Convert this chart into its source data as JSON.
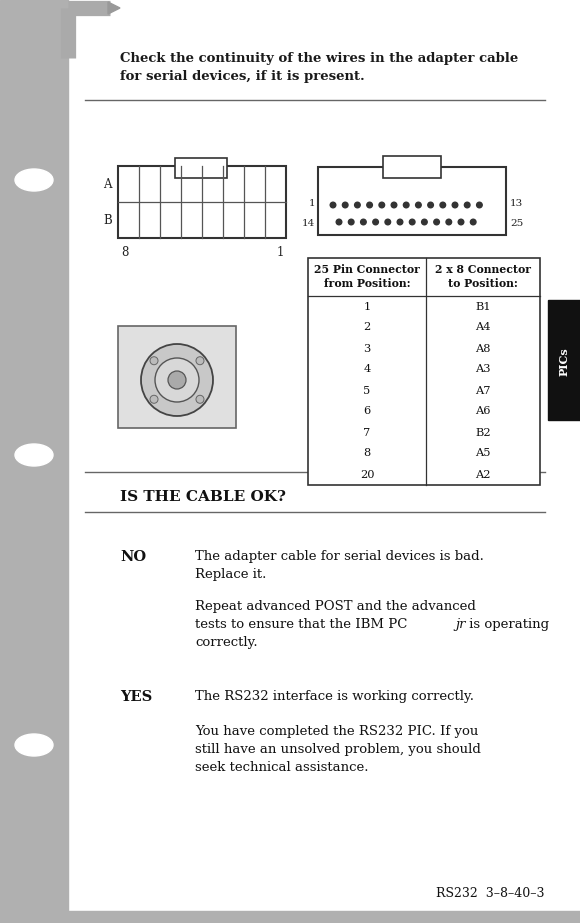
{
  "page_bg": "#ffffff",
  "sidebar_color": "#b0b0b0",
  "intro_text_line1": "Check the continuity of the wires in the adapter cable",
  "intro_text_line2": "for serial devices, if it is present.",
  "table_headers": [
    "25 Pin Connector\nfrom Position:",
    "2 x 8 Connector\nto Position:"
  ],
  "table_rows": [
    [
      "1",
      "B1"
    ],
    [
      "2",
      "A4"
    ],
    [
      "3",
      "A8"
    ],
    [
      "4",
      "A3"
    ],
    [
      "5",
      "A7"
    ],
    [
      "6",
      "A6"
    ],
    [
      "7",
      "B2"
    ],
    [
      "8",
      "A5"
    ],
    [
      "20",
      "A2"
    ]
  ],
  "section_header": "IS THE CABLE OK?",
  "no_label": "NO",
  "no_text1_line1": "The adapter cable for serial devices is bad.",
  "no_text1_line2": "Replace it.",
  "no_text2_line1": "Repeat advanced POST and the advanced",
  "no_text2_line2_pre": "tests to ensure that the IBM PC",
  "no_text2_line2_italic": "jr",
  "no_text2_line2_post": " is operating",
  "no_text2_line3": "correctly.",
  "yes_label": "YES",
  "yes_text1": "The RS232 interface is working correctly.",
  "yes_text2_line1": "You have completed the RS232 PIC. If you",
  "yes_text2_line2": "still have an unsolved problem, you should",
  "yes_text2_line3": "seek technical assistance.",
  "footer_text": "RS232  3–8–40–3",
  "pics_label": "PICs",
  "connector_color": "#333333",
  "table_border_color": "#333333",
  "text_color": "#1a1a1a"
}
